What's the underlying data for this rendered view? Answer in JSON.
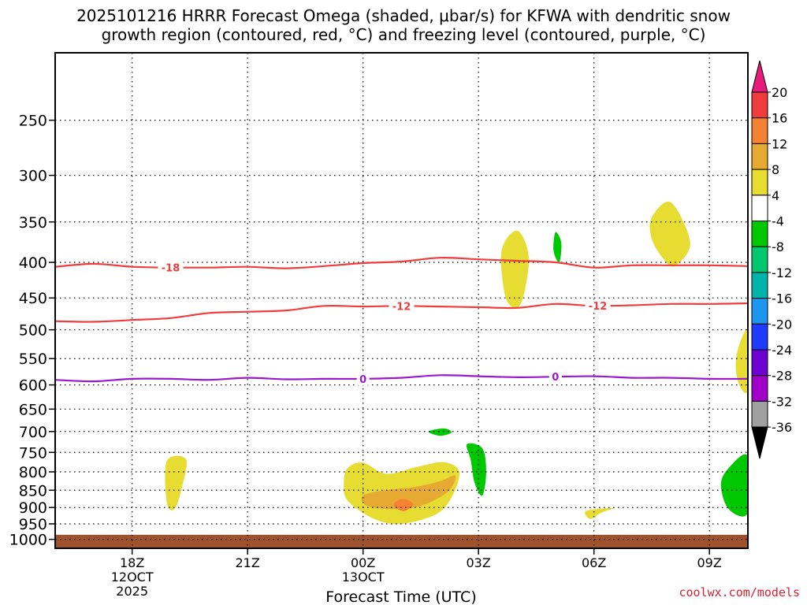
{
  "title_lines": [
    "2025101216 HRRR Forecast Omega (shaded, μbar/s) for KFWA with dendritic snow",
    "growth region (contoured, red, °C) and freezing level (contoured, purple, °C)"
  ],
  "watermark": "coolwx.com/models",
  "chart_data": {
    "type": "heatmap",
    "title": "2025101216 HRRR Forecast Omega (shaded, μbar/s) for KFWA with dendritic snow growth region (contoured, red, °C) and freezing level (contoured, purple, °C)",
    "xlabel": "Forecast Time (UTC)",
    "ylabel": "",
    "y_scale": "log-pressure",
    "ylim": [
      1030,
      200
    ],
    "xlim": [
      "2025-10-12 16Z",
      "2025-10-13 10Z"
    ],
    "y_ticks": [
      250,
      300,
      350,
      400,
      450,
      500,
      550,
      600,
      650,
      700,
      750,
      800,
      850,
      900,
      950,
      1000
    ],
    "x_ticks": [
      {
        "hour": 18,
        "label": "18Z",
        "sub1": "12OCT",
        "sub2": "2025"
      },
      {
        "hour": 21,
        "label": "21Z",
        "sub1": "",
        "sub2": ""
      },
      {
        "hour": 24,
        "label": "00Z",
        "sub1": "13OCT",
        "sub2": ""
      },
      {
        "hour": 27,
        "label": "03Z",
        "sub1": "",
        "sub2": ""
      },
      {
        "hour": 30,
        "label": "06Z",
        "sub1": "",
        "sub2": ""
      },
      {
        "hour": 33,
        "label": "09Z",
        "sub1": "",
        "sub2": ""
      }
    ],
    "grid": true,
    "colorbar": {
      "levels": [
        -36,
        -32,
        -28,
        -24,
        -20,
        -16,
        -12,
        -8,
        -4,
        4,
        8,
        12,
        16,
        20
      ],
      "labels": [
        "20",
        "16",
        "12",
        "8",
        "4",
        "-4",
        "-8",
        "-12",
        "-16",
        "-20",
        "-24",
        "-28",
        "-32",
        "-36"
      ],
      "colors_top_down": [
        "#f03c3c",
        "#f58232",
        "#e6aa32",
        "#e6dc32",
        "#ffffff",
        "#00c800",
        "#00c86e",
        "#00b4aa",
        "#1e96f0",
        "#1e3cff",
        "#6e00d2",
        "#a000c8",
        "#a0a0a0"
      ],
      "top_arrow_color": "#e6197d",
      "bottom_arrow_color": "#000000"
    },
    "contours": [
      {
        "value": -18,
        "label": "-18",
        "color": "#f03c3c",
        "points": [
          [
            16,
            406
          ],
          [
            17,
            402
          ],
          [
            18,
            406
          ],
          [
            19,
            407
          ],
          [
            20,
            407
          ],
          [
            21,
            406
          ],
          [
            22,
            408
          ],
          [
            23,
            405
          ],
          [
            24,
            401
          ],
          [
            25,
            399
          ],
          [
            26,
            394
          ],
          [
            27,
            396
          ],
          [
            28,
            398
          ],
          [
            29,
            400
          ],
          [
            30,
            407
          ],
          [
            31,
            404
          ],
          [
            32,
            404
          ],
          [
            33,
            404
          ],
          [
            34,
            405
          ]
        ],
        "label_at": 19
      },
      {
        "value": -12,
        "label": "-12",
        "color": "#f03c3c",
        "points": [
          [
            16,
            486
          ],
          [
            17,
            487
          ],
          [
            18,
            484
          ],
          [
            19,
            481
          ],
          [
            20,
            473
          ],
          [
            21,
            471
          ],
          [
            22,
            469
          ],
          [
            23,
            462
          ],
          [
            24,
            463
          ],
          [
            25,
            462
          ],
          [
            26,
            463
          ],
          [
            27,
            464
          ],
          [
            28,
            465
          ],
          [
            29,
            459
          ],
          [
            30,
            462
          ],
          [
            31,
            461
          ],
          [
            32,
            459
          ],
          [
            33,
            459
          ],
          [
            34,
            458
          ]
        ],
        "label_at": 25,
        "label_at2": 30.1
      },
      {
        "value": 0,
        "label": "0",
        "color": "#9b19cd",
        "points": [
          [
            16,
            590
          ],
          [
            17,
            593
          ],
          [
            18,
            588
          ],
          [
            19,
            588
          ],
          [
            20,
            590
          ],
          [
            21,
            586
          ],
          [
            22,
            589
          ],
          [
            23,
            588
          ],
          [
            24,
            588
          ],
          [
            25,
            586
          ],
          [
            26,
            581
          ],
          [
            27,
            583
          ],
          [
            28,
            585
          ],
          [
            29,
            584
          ],
          [
            30,
            583
          ],
          [
            31,
            586
          ],
          [
            32,
            586
          ],
          [
            33,
            588
          ],
          [
            34,
            588
          ]
        ],
        "label_at": 24,
        "label_at2": 29
      }
    ],
    "shaded_regions": [
      {
        "level": 4,
        "color": "#e6dc32",
        "points": [
          [
            18.9,
            772
          ],
          [
            19.4,
            767
          ],
          [
            19.3,
            840
          ],
          [
            19.1,
            905
          ],
          [
            18.9,
            885
          ]
        ]
      },
      {
        "level": 4,
        "color": "#e6dc32",
        "points": [
          [
            23.6,
            790
          ],
          [
            24.0,
            776
          ],
          [
            24.6,
            805
          ],
          [
            25.4,
            787
          ],
          [
            26.1,
            775
          ],
          [
            26.5,
            800
          ],
          [
            26.3,
            870
          ],
          [
            25.9,
            920
          ],
          [
            25.0,
            950
          ],
          [
            24.3,
            935
          ],
          [
            23.6,
            880
          ],
          [
            23.5,
            830
          ]
        ]
      },
      {
        "level": 8,
        "color": "#e6aa32",
        "points": [
          [
            24.0,
            865
          ],
          [
            24.6,
            850
          ],
          [
            25.4,
            840
          ],
          [
            26.0,
            825
          ],
          [
            26.4,
            810
          ],
          [
            26.2,
            855
          ],
          [
            25.5,
            895
          ],
          [
            24.8,
            905
          ],
          [
            24.1,
            895
          ]
        ]
      },
      {
        "level": 12,
        "color": "#f58232",
        "points": [
          [
            24.8,
            888
          ],
          [
            25.05,
            875
          ],
          [
            25.3,
            890
          ],
          [
            25.1,
            910
          ],
          [
            24.9,
            905
          ]
        ]
      },
      {
        "level": 4,
        "color": "#e6dc32",
        "points": [
          [
            27.6,
            385
          ],
          [
            28.0,
            360
          ],
          [
            28.3,
            390
          ],
          [
            28.2,
            440
          ],
          [
            28.0,
            465
          ],
          [
            27.7,
            448
          ]
        ]
      },
      {
        "level": 4,
        "color": "#e6dc32",
        "points": [
          [
            29.8,
            910
          ],
          [
            30.5,
            902
          ],
          [
            30.2,
            915
          ],
          [
            29.9,
            935
          ]
        ]
      },
      {
        "level": 4,
        "color": "#e6dc32",
        "points": [
          [
            31.5,
            345
          ],
          [
            32.0,
            328
          ],
          [
            32.5,
            375
          ],
          [
            32.1,
            405
          ],
          [
            31.8,
            395
          ],
          [
            31.5,
            370
          ]
        ]
      },
      {
        "level": 4,
        "color": "#e6dc32",
        "points": [
          [
            34.0,
            500
          ],
          [
            34.0,
            610
          ],
          [
            33.75,
            595
          ],
          [
            33.7,
            545
          ]
        ]
      },
      {
        "level": -4,
        "color": "#00c800",
        "points": [
          [
            29.0,
            362
          ],
          [
            29.15,
            375
          ],
          [
            29.1,
            400
          ],
          [
            28.95,
            385
          ]
        ]
      },
      {
        "level": -4,
        "color": "#00c800",
        "points": [
          [
            25.7,
            700
          ],
          [
            26.1,
            693
          ],
          [
            26.3,
            702
          ],
          [
            26.0,
            710
          ]
        ]
      },
      {
        "level": -4,
        "color": "#00c800",
        "points": [
          [
            26.7,
            730
          ],
          [
            27.1,
            740
          ],
          [
            27.2,
            800
          ],
          [
            27.1,
            865
          ],
          [
            26.9,
            830
          ],
          [
            26.8,
            770
          ]
        ]
      },
      {
        "level": -4,
        "color": "#00c800",
        "points": [
          [
            34.0,
            760
          ],
          [
            34.0,
            915
          ],
          [
            33.5,
            905
          ],
          [
            33.3,
            835
          ],
          [
            33.5,
            790
          ]
        ]
      }
    ],
    "ground": {
      "color": "#a0522d",
      "below_pressure": 985
    }
  }
}
